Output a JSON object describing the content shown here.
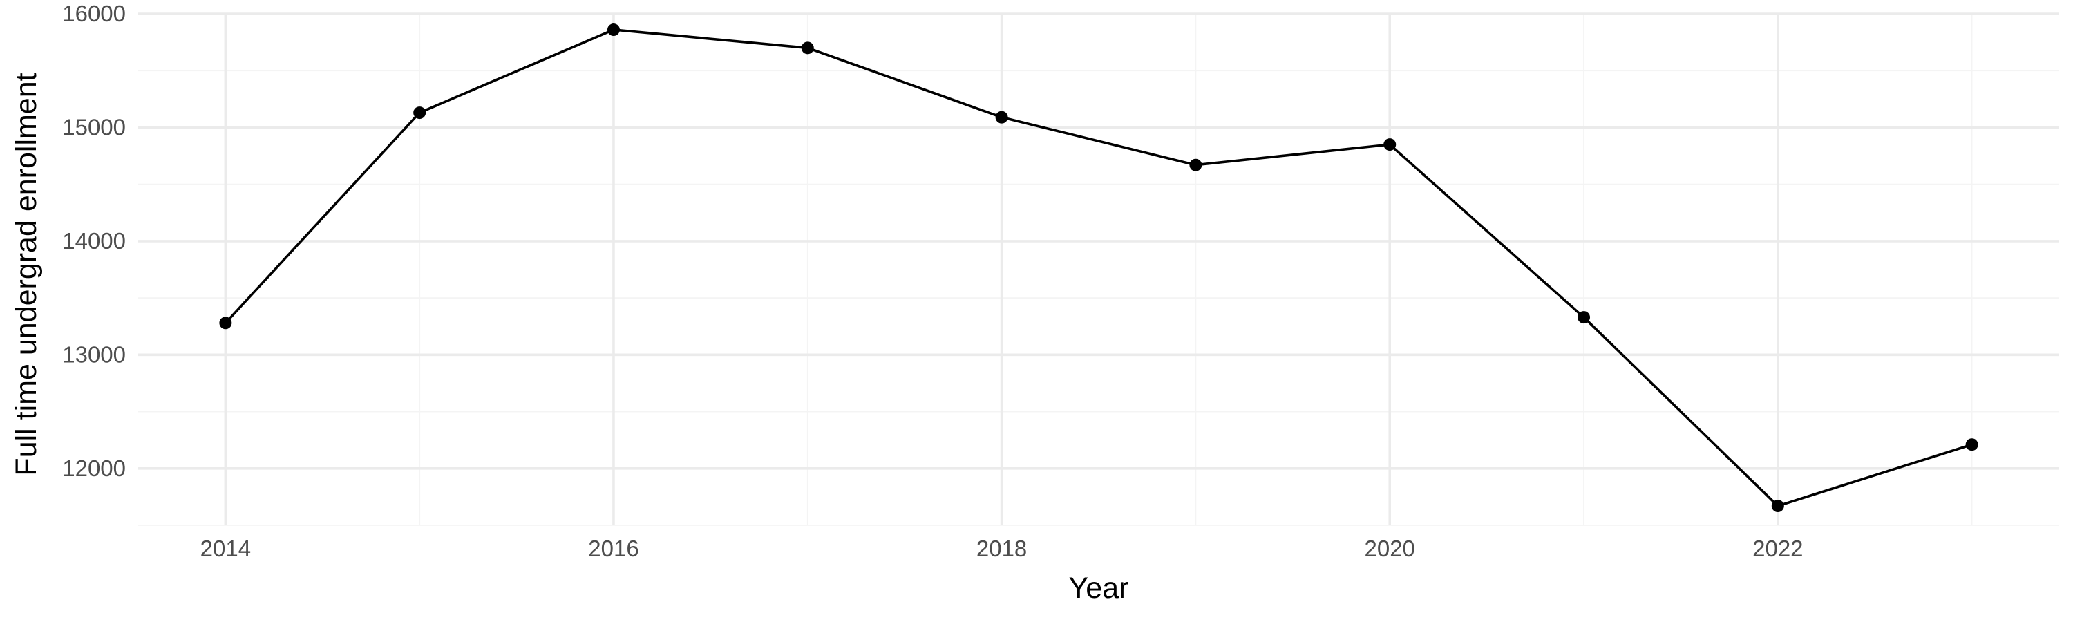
{
  "chart_data": {
    "type": "line",
    "title": "",
    "xlabel": "Year",
    "ylabel": "Full time undergrad enrollment",
    "x": [
      2014,
      2015,
      2016,
      2017,
      2018,
      2019,
      2020,
      2021,
      2022,
      2023
    ],
    "series": [
      {
        "values": [
          13280,
          15130,
          15860,
          15700,
          15090,
          14670,
          14850,
          13330,
          11670,
          12210
        ]
      }
    ],
    "xlim": [
      2013.55,
      2023.45
    ],
    "ylim": [
      11500,
      16000
    ],
    "x_ticks": [
      2014,
      2016,
      2018,
      2020,
      2022
    ],
    "x_tick_labels": [
      "2014",
      "2016",
      "2018",
      "2020",
      "2022"
    ],
    "y_ticks": [
      12000,
      13000,
      14000,
      15000,
      16000
    ],
    "y_tick_labels": [
      "12000",
      "13000",
      "14000",
      "15000",
      "16000"
    ],
    "grid": true,
    "legend": "none",
    "colors": {
      "line": "#000000",
      "point": "#000000",
      "grid_major": "#ebebeb",
      "grid_minor": "#f4f4f4",
      "tick_label": "#4d4d4d"
    }
  }
}
